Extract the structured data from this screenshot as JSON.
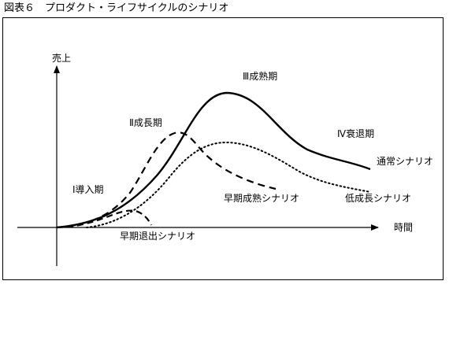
{
  "caption": "図表６　プロダクト・ライフサイクルのシナリオ",
  "axes": {
    "y": "売上",
    "x": "時間"
  },
  "phases": {
    "introduction": "Ⅰ導入期",
    "growth": "Ⅱ成長期",
    "maturity": "Ⅲ成熟期",
    "decline": "Ⅳ衰退期"
  },
  "scenarios": {
    "normal": "通常シナリオ",
    "early_maturity": "早期成熟シナリオ",
    "low_growth": "低成長シナリオ",
    "early_exit": "早期退出シナリオ"
  },
  "colors": {
    "ink": "#000000",
    "background": "#ffffff"
  }
}
